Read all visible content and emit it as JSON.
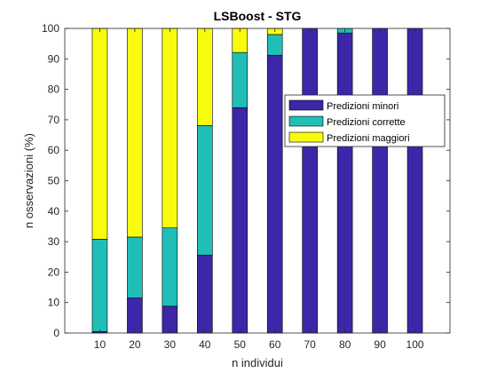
{
  "chart_data": {
    "type": "bar",
    "stacked": true,
    "title": "LSBoost - STG",
    "xlabel": "n individui",
    "ylabel": "n osservazioni (%)",
    "categories": [
      "10",
      "20",
      "30",
      "40",
      "50",
      "60",
      "70",
      "80",
      "90",
      "100"
    ],
    "ylim": [
      0,
      100
    ],
    "yticks": [
      0,
      10,
      20,
      30,
      40,
      50,
      60,
      70,
      80,
      90,
      100
    ],
    "grid": false,
    "legend_position": "center-right",
    "series": [
      {
        "name": "Predizioni minori",
        "color": "#3e26a8",
        "values": [
          0.5,
          11.5,
          8.8,
          25.6,
          74,
          91.2,
          100,
          98.5,
          100,
          100
        ]
      },
      {
        "name": "Predizioni corrette",
        "color": "#1fbfb8",
        "values": [
          30.3,
          20,
          25.7,
          42.5,
          18.1,
          6.8,
          0,
          1.5,
          0,
          0
        ]
      },
      {
        "name": "Predizioni maggiori",
        "color": "#f9fb0e",
        "values": [
          69.2,
          68.5,
          65.5,
          31.9,
          7.9,
          2,
          0,
          0,
          0,
          0
        ]
      }
    ]
  }
}
